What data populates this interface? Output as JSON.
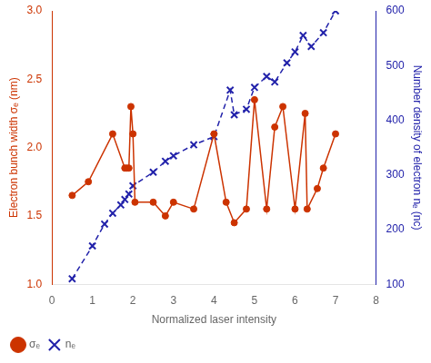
{
  "chart_data": {
    "type": "line",
    "xlabel": "Normalized laser intensity",
    "ylabel": "Electron bunch width σₑ (nm)",
    "y2label": "Number density of electron nₑ (nc)",
    "xlim": [
      0,
      8
    ],
    "xticks": [
      0,
      1,
      2,
      3,
      4,
      5,
      6,
      7,
      8
    ],
    "ylim": [
      1.0,
      3.0
    ],
    "yticks": [
      {
        "value": 1.0,
        "label": "1.0"
      },
      1.5,
      {
        "value": 2.0,
        "label": "2.0"
      },
      2.5,
      {
        "value": 3.0,
        "label": "3.0"
      }
    ],
    "y2lim": [
      100,
      600
    ],
    "y2ticks": [
      100,
      200,
      300,
      400,
      500,
      600
    ],
    "grid": false,
    "legend": "lower left",
    "series": [
      {
        "name": "σₑ",
        "color": "#CC3300",
        "marker": "o",
        "line_style": "solid",
        "axis": "y",
        "x": [
          0.5,
          0.9,
          1.5,
          1.8,
          1.85,
          1.9,
          1.95,
          2.0,
          2.05,
          2.5,
          2.8,
          3.0,
          3.5,
          4.0,
          4.3,
          4.5,
          4.8,
          5.0,
          5.3,
          5.5,
          5.7,
          6.0,
          6.25,
          6.3,
          6.55,
          6.7,
          7.0
        ],
        "values": [
          1.65,
          1.75,
          2.1,
          1.85,
          1.85,
          1.85,
          2.3,
          2.1,
          1.6,
          1.6,
          1.5,
          1.6,
          1.55,
          2.1,
          1.6,
          1.45,
          1.55,
          2.35,
          1.55,
          2.15,
          2.3,
          1.55,
          2.25,
          1.55,
          1.7,
          1.85,
          2.1
        ]
      },
      {
        "name": "nₑ",
        "color": "#2222AA",
        "marker": "x",
        "line_style": "dashed",
        "axis": "y2",
        "x": [
          0.5,
          1.0,
          1.3,
          1.5,
          1.7,
          1.8,
          1.9,
          2.0,
          2.5,
          2.8,
          3.0,
          3.5,
          4.0,
          4.4,
          4.5,
          4.8,
          5.0,
          5.3,
          5.5,
          5.8,
          6.0,
          6.2,
          6.4,
          6.7,
          7.0
        ],
        "values": [
          110,
          170,
          210,
          230,
          245,
          255,
          265,
          280,
          305,
          325,
          335,
          355,
          370,
          455,
          410,
          420,
          460,
          480,
          470,
          505,
          525,
          555,
          535,
          560,
          600
        ]
      }
    ]
  }
}
